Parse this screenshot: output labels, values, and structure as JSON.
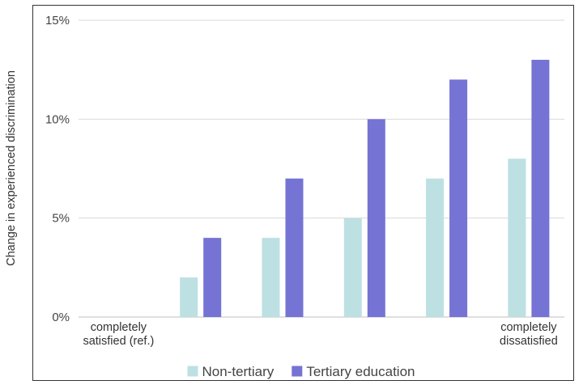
{
  "chart_data": {
    "type": "bar",
    "ylabel": "Change in experienced discrimination",
    "ylim": [
      0,
      15
    ],
    "yticks": [
      "0%",
      "5%",
      "10%",
      "15%"
    ],
    "ytick_values": [
      0,
      5,
      10,
      15
    ],
    "grid": true,
    "legend_position": "bottom",
    "categories": [
      [
        "completely",
        "satisfied (ref.)"
      ],
      [
        "",
        ""
      ],
      [
        "",
        ""
      ],
      [
        "",
        ""
      ],
      [
        "",
        ""
      ],
      [
        "completely",
        "dissatisfied"
      ]
    ],
    "series": [
      {
        "name": "Non-tertiary",
        "color": "#bde0e3",
        "values": [
          0,
          2,
          4,
          5,
          7,
          8
        ]
      },
      {
        "name": "Tertiary education",
        "color": "#7573d3",
        "values": [
          0,
          4,
          7,
          10,
          12,
          13
        ]
      }
    ]
  }
}
